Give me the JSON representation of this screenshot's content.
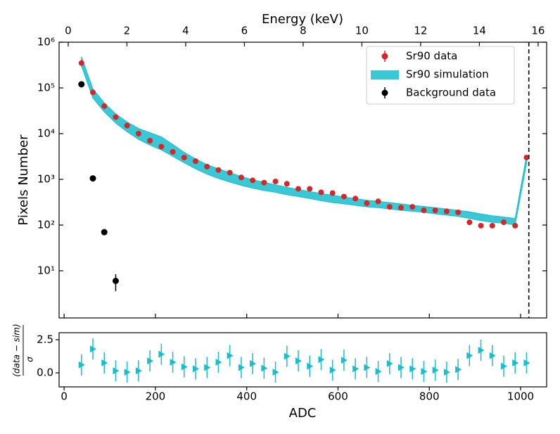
{
  "chart_data": [
    {
      "type": "log-scatter-band",
      "xlabel": "ADC",
      "ylabel": "Pixels Number",
      "x2label": "Energy (keV)",
      "xlim": [
        -11,
        1057
      ],
      "xticks": [
        0,
        200,
        400,
        600,
        800,
        1000
      ],
      "x2lim": [
        -0.31,
        16.29
      ],
      "x2ticks": [
        0,
        2,
        4,
        6,
        8,
        10,
        12,
        14,
        16
      ],
      "ylim": [
        0.93,
        1000000
      ],
      "log_y": true,
      "yticks": [
        {
          "value": 10,
          "label": "10¹"
        },
        {
          "value": 100,
          "label": "10²"
        },
        {
          "value": 1000,
          "label": "10³"
        },
        {
          "value": 10000,
          "label": "10⁴"
        },
        {
          "value": 100000,
          "label": "10⁵"
        },
        {
          "value": 1000000,
          "label": "10⁶"
        }
      ],
      "vline": 1018,
      "legend": "upper right",
      "x": [
        38,
        63,
        88,
        113,
        138,
        163,
        188,
        213,
        238,
        263,
        288,
        313,
        338,
        363,
        388,
        413,
        438,
        463,
        488,
        513,
        538,
        563,
        588,
        613,
        638,
        663,
        688,
        713,
        738,
        763,
        788,
        813,
        838,
        863,
        888,
        913,
        938,
        963,
        988,
        1013
      ],
      "series": [
        {
          "name": "Sr90 data",
          "color": "#d62728",
          "values": [
            350000,
            80000,
            40000,
            23000,
            15000,
            10000,
            7000,
            5200,
            4000,
            3000,
            2500,
            1900,
            1600,
            1400,
            1100,
            950,
            850,
            900,
            800,
            620,
            620,
            520,
            500,
            420,
            380,
            300,
            330,
            250,
            240,
            250,
            210,
            210,
            200,
            190,
            115,
            97,
            97,
            115,
            97,
            3000
          ]
        },
        {
          "name": "Sr90 simulation",
          "color": "#17becf",
          "lower": [
            300000,
            60000,
            30000,
            17000,
            11000,
            7500,
            5600,
            4400,
            3200,
            2300,
            1700,
            1300,
            1050,
            870,
            740,
            640,
            570,
            520,
            460,
            420,
            380,
            340,
            310,
            290,
            270,
            250,
            240,
            225,
            210,
            200,
            190,
            175,
            165,
            155,
            140,
            125,
            115,
            110,
            100,
            2200
          ],
          "upper": [
            480000,
            95000,
            47000,
            27000,
            18000,
            13000,
            10500,
            8500,
            5800,
            3900,
            2800,
            2100,
            1700,
            1400,
            1150,
            980,
            860,
            760,
            670,
            600,
            540,
            490,
            450,
            410,
            380,
            350,
            330,
            310,
            290,
            270,
            255,
            240,
            225,
            210,
            195,
            175,
            160,
            150,
            140,
            3300
          ]
        },
        {
          "name": "Background data",
          "color": "#000000",
          "x": [
            38,
            63,
            88,
            113
          ],
          "values": [
            120000,
            1050,
            70,
            6
          ],
          "errors": [
            3500,
            32,
            8,
            2.4
          ]
        }
      ]
    },
    {
      "type": "residual",
      "ylabel_num": "(data − sim)",
      "ylabel_den": "σ",
      "xlim": [
        -11,
        1057
      ],
      "xticks": [
        0,
        200,
        400,
        600,
        800,
        1000
      ],
      "ylim": [
        -1.06,
        3.03
      ],
      "yticks": [
        {
          "value": 0,
          "label": "0.0"
        },
        {
          "value": 2.5,
          "label": "2.5"
        }
      ],
      "color": "#17becf",
      "values": [
        0.6,
        1.8,
        0.75,
        0.15,
        0.05,
        0.15,
        0.9,
        1.4,
        0.8,
        0.45,
        0.3,
        0.4,
        0.8,
        1.3,
        0.4,
        0.7,
        0.35,
        0.05,
        1.25,
        0.9,
        0.5,
        1.0,
        0.2,
        0.95,
        0.3,
        0.4,
        0.1,
        0.7,
        0.4,
        0.3,
        0.1,
        0.2,
        0.05,
        0.25,
        1.3,
        1.7,
        1.3,
        0.5,
        0.75,
        0.75
      ],
      "errors": [
        0.8,
        0.8,
        0.8,
        0.8,
        0.8,
        0.8,
        0.8,
        0.8,
        0.8,
        0.8,
        0.8,
        0.8,
        0.8,
        0.8,
        0.8,
        0.8,
        0.8,
        0.8,
        0.8,
        0.8,
        0.8,
        0.8,
        0.8,
        0.8,
        0.8,
        0.8,
        0.8,
        0.8,
        0.8,
        0.8,
        0.8,
        0.8,
        0.8,
        0.8,
        0.8,
        0.8,
        0.8,
        0.8,
        0.8,
        0.8
      ]
    }
  ]
}
